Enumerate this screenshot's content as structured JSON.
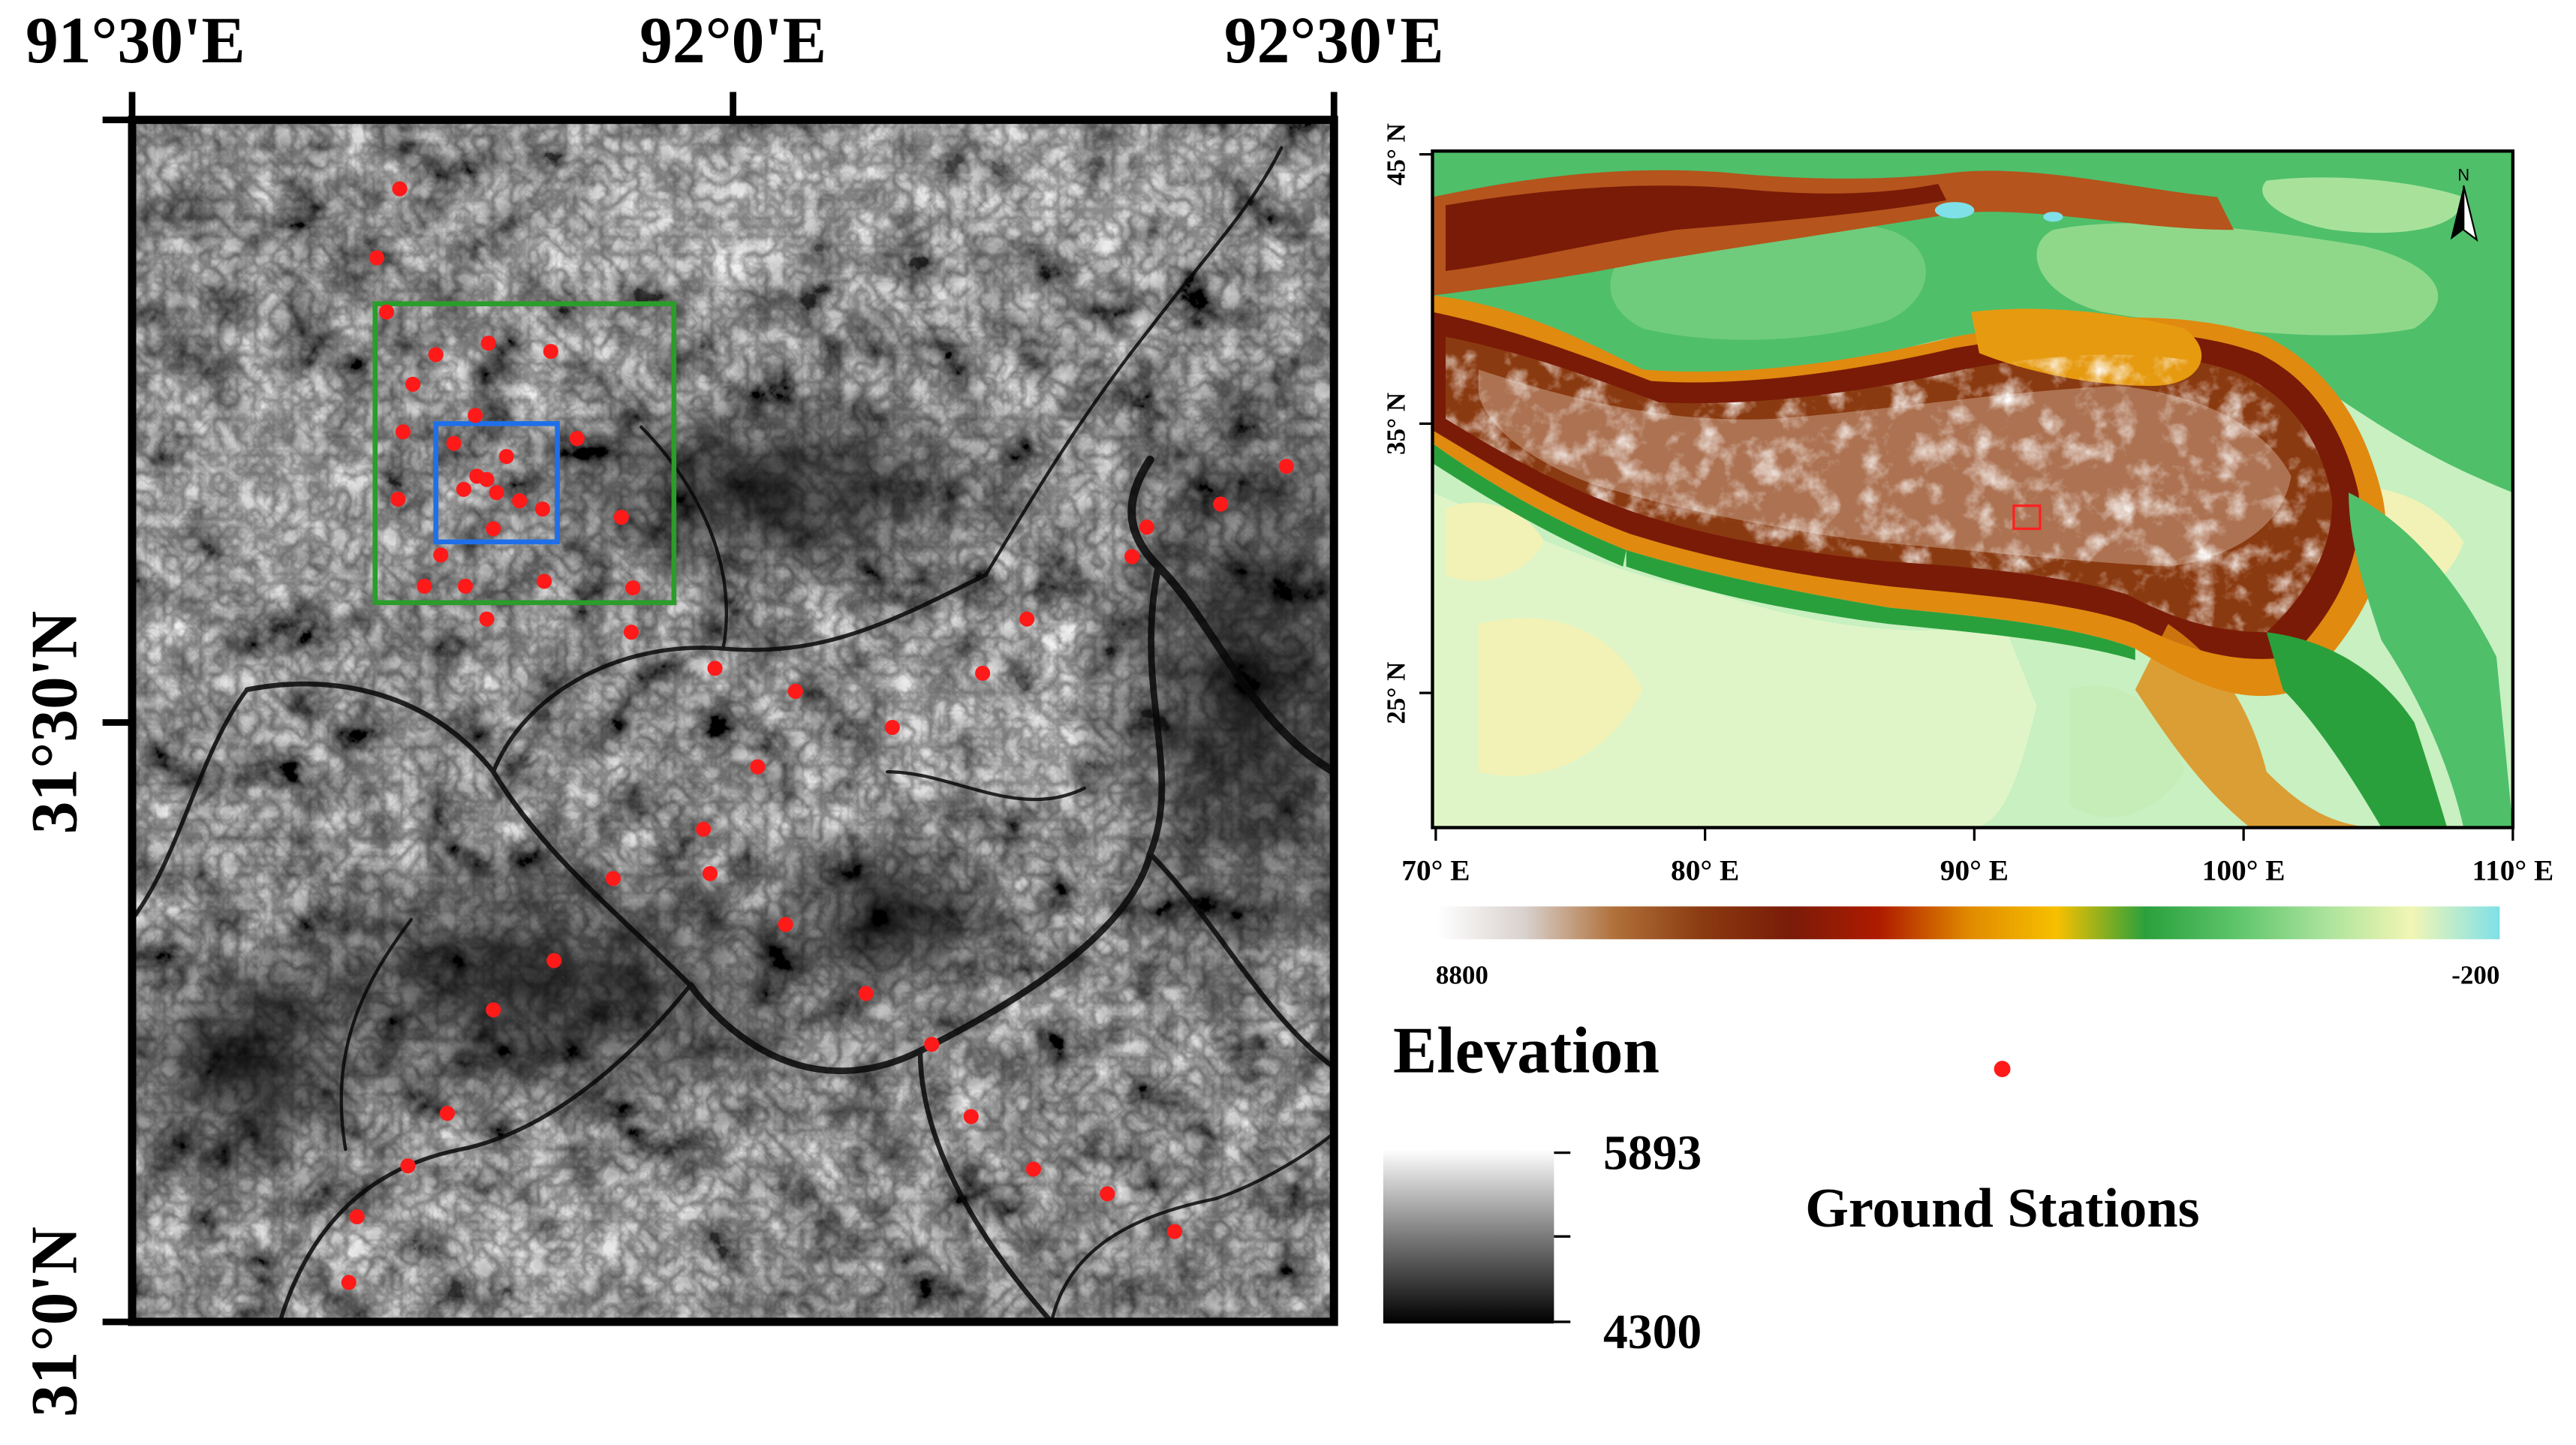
{
  "left_map": {
    "top_lon_ticks": [
      "91°30'E",
      "92°0'E",
      "92°30'E"
    ],
    "left_lat_ticks": [
      "31°30'N",
      "31°0'N"
    ],
    "station_color": "#ff1a1a",
    "outer_box_color": "#2a9d2a",
    "inner_box_color": "#1f6fe8",
    "stations": [
      [
        243,
        115
      ],
      [
        229,
        157
      ],
      [
        235,
        190
      ],
      [
        265,
        216
      ],
      [
        297,
        209
      ],
      [
        335,
        214
      ],
      [
        251,
        234
      ],
      [
        289,
        253
      ],
      [
        245,
        263
      ],
      [
        276,
        270
      ],
      [
        308,
        278
      ],
      [
        351,
        267
      ],
      [
        242,
        304
      ],
      [
        282,
        298
      ],
      [
        296,
        292
      ],
      [
        302,
        300
      ],
      [
        290,
        290
      ],
      [
        316,
        305
      ],
      [
        300,
        322
      ],
      [
        330,
        310
      ],
      [
        378,
        315
      ],
      [
        268,
        338
      ],
      [
        258,
        357
      ],
      [
        283,
        357
      ],
      [
        331,
        354
      ],
      [
        385,
        358
      ],
      [
        296,
        377
      ],
      [
        384,
        385
      ],
      [
        435,
        407
      ],
      [
        484,
        421
      ],
      [
        598,
        410
      ],
      [
        625,
        377
      ],
      [
        543,
        443
      ],
      [
        461,
        467
      ],
      [
        428,
        505
      ],
      [
        432,
        532
      ],
      [
        373,
        535
      ],
      [
        478,
        563
      ],
      [
        337,
        585
      ],
      [
        300,
        615
      ],
      [
        527,
        605
      ],
      [
        567,
        636
      ],
      [
        272,
        678
      ],
      [
        248,
        710
      ],
      [
        591,
        680
      ],
      [
        629,
        712
      ],
      [
        674,
        727
      ],
      [
        217,
        741
      ],
      [
        715,
        750
      ],
      [
        212,
        781
      ],
      [
        689,
        339
      ],
      [
        698,
        321
      ],
      [
        743,
        307
      ],
      [
        783,
        284
      ]
    ]
  },
  "inset_map": {
    "lon_ticks": [
      "70° E",
      "80° E",
      "90° E",
      "100° E",
      "110° E"
    ],
    "lat_ticks": [
      "45° N",
      "35° N",
      "25° N"
    ],
    "north_arrow_label": "N",
    "highlight_color": "#ff2020"
  },
  "colorbar": {
    "max_label": "8800",
    "min_label": "-200",
    "stops": [
      "#ffffff",
      "#d8d0cc",
      "#b0703a",
      "#8a3a10",
      "#7a1b08",
      "#b01b00",
      "#e08a00",
      "#f7c000",
      "#2aa03c",
      "#5cc46a",
      "#a8e29a",
      "#f2f6b4",
      "#7fe0e8"
    ]
  },
  "legend": {
    "title": "Elevation",
    "high": "5893",
    "low": "4300",
    "gray_stops": [
      "#ffffff",
      "#7a7a7a",
      "#000000"
    ],
    "stations_label": "Ground Stations"
  }
}
